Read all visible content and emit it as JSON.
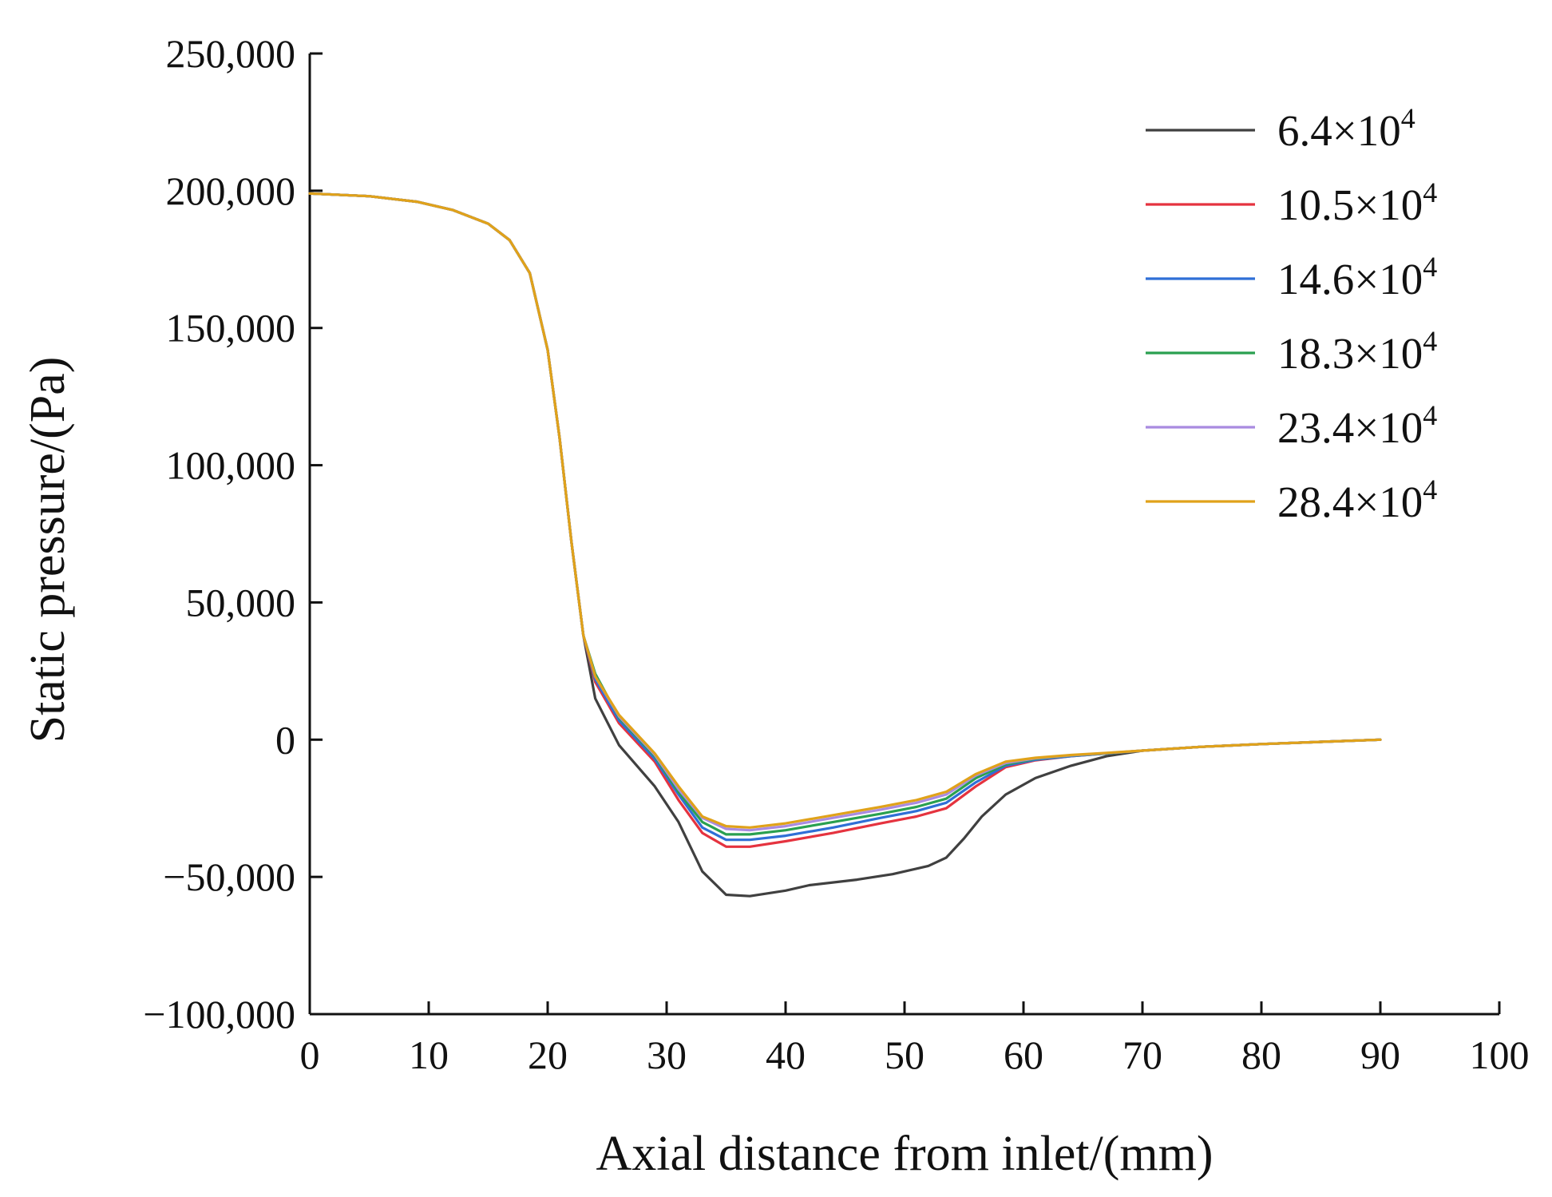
{
  "chart_data": {
    "type": "line",
    "title": "",
    "xlabel": "Axial distance from inlet/(mm)",
    "ylabel": "Static pressure/(Pa)",
    "xlim": [
      0,
      100
    ],
    "ylim": [
      -100000,
      250000
    ],
    "x_ticks": [
      0,
      10,
      20,
      30,
      40,
      50,
      60,
      70,
      80,
      90,
      100
    ],
    "x_tick_labels": [
      "0",
      "10",
      "20",
      "30",
      "40",
      "50",
      "60",
      "70",
      "80",
      "90",
      "100"
    ],
    "y_ticks": [
      -100000,
      -50000,
      0,
      50000,
      100000,
      150000,
      200000,
      250000
    ],
    "y_tick_labels": [
      "−100,000",
      "−50,000",
      "0",
      "50,000",
      "100,000",
      "150,000",
      "200,000",
      "250,000"
    ],
    "grid": false,
    "legend_position": "top-right",
    "series": [
      {
        "name": "6.4×10",
        "exponent": "4",
        "color": "#404040",
        "x": [
          0,
          5,
          9,
          12,
          15,
          16.8,
          18.5,
          20,
          21,
          22,
          23,
          24,
          26,
          29,
          31,
          33,
          35,
          37,
          40,
          42,
          46,
          49,
          52,
          53.5,
          55,
          56.5,
          58.5,
          61,
          64,
          67,
          70,
          75,
          80,
          85,
          90
        ],
        "y": [
          199000,
          198000,
          196000,
          193000,
          188000,
          182000,
          170000,
          142000,
          110000,
          72000,
          38000,
          15000,
          -2000,
          -17000,
          -30000,
          -48000,
          -56500,
          -57000,
          -55000,
          -53000,
          -51000,
          -49000,
          -46000,
          -43000,
          -36000,
          -28000,
          -20000,
          -14000,
          -9500,
          -6000,
          -4000,
          -2600,
          -1600,
          -800,
          0
        ]
      },
      {
        "name": "10.5×10",
        "exponent": "4",
        "color": "#e5333f",
        "x": [
          0,
          5,
          9,
          12,
          15,
          16.8,
          18.5,
          20,
          21,
          22,
          23,
          24,
          26,
          29,
          31,
          33,
          35,
          37,
          40,
          44,
          48,
          51,
          53.5,
          56,
          58.5,
          61,
          64,
          67,
          70,
          75,
          80,
          85,
          90
        ],
        "y": [
          199000,
          198000,
          196000,
          193000,
          188000,
          182000,
          170000,
          142000,
          110000,
          72000,
          38000,
          21000,
          6000,
          -8000,
          -22000,
          -34000,
          -39000,
          -39000,
          -37000,
          -34000,
          -30500,
          -28000,
          -25000,
          -17000,
          -10000,
          -7500,
          -6000,
          -5000,
          -4000,
          -2600,
          -1600,
          -800,
          0
        ]
      },
      {
        "name": "14.6×10",
        "exponent": "4",
        "color": "#2f6fd6",
        "x": [
          0,
          5,
          9,
          12,
          15,
          16.8,
          18.5,
          20,
          21,
          22,
          23,
          24,
          26,
          29,
          31,
          33,
          35,
          37,
          40,
          44,
          48,
          51,
          53.5,
          56,
          58.5,
          61,
          64,
          67,
          70,
          75,
          80,
          85,
          90
        ],
        "y": [
          199000,
          198000,
          196000,
          193000,
          188000,
          182000,
          170000,
          142000,
          110000,
          72000,
          38000,
          22000,
          7000,
          -7000,
          -20000,
          -32000,
          -36500,
          -36500,
          -35000,
          -32000,
          -28500,
          -26000,
          -23000,
          -15500,
          -9500,
          -7300,
          -6000,
          -5000,
          -4000,
          -2600,
          -1600,
          -800,
          0
        ]
      },
      {
        "name": "18.3×10",
        "exponent": "4",
        "color": "#2aa050",
        "x": [
          0,
          5,
          9,
          12,
          15,
          16.8,
          18.5,
          20,
          21,
          22,
          23,
          24,
          26,
          29,
          31,
          33,
          35,
          37,
          40,
          44,
          48,
          51,
          53.5,
          56,
          58.5,
          61,
          64,
          67,
          70,
          75,
          80,
          85,
          90
        ],
        "y": [
          199000,
          198000,
          196000,
          193000,
          188000,
          182000,
          170000,
          142000,
          110000,
          72000,
          38000,
          24000,
          8000,
          -6000,
          -19000,
          -30000,
          -34500,
          -34500,
          -33000,
          -30000,
          -27000,
          -24500,
          -21500,
          -14000,
          -9000,
          -7000,
          -5800,
          -5000,
          -4000,
          -2600,
          -1600,
          -800,
          0
        ]
      },
      {
        "name": "23.4×10",
        "exponent": "4",
        "color": "#a98be0",
        "x": [
          0,
          5,
          9,
          12,
          15,
          16.8,
          18.5,
          20,
          21,
          22,
          23,
          24,
          26,
          29,
          31,
          33,
          35,
          37,
          40,
          44,
          48,
          51,
          53.5,
          56,
          58.5,
          61,
          64,
          67,
          70,
          75,
          80,
          85,
          90
        ],
        "y": [
          199000,
          198000,
          196000,
          193000,
          188000,
          182000,
          170000,
          142000,
          110000,
          72000,
          38000,
          23000,
          8500,
          -5500,
          -18000,
          -28500,
          -32500,
          -33000,
          -31500,
          -28500,
          -25500,
          -23000,
          -20000,
          -13000,
          -8500,
          -6800,
          -5700,
          -4900,
          -4000,
          -2600,
          -1600,
          -800,
          0
        ]
      },
      {
        "name": "28.4×10",
        "exponent": "4",
        "color": "#e0a21a",
        "x": [
          0,
          5,
          9,
          12,
          15,
          16.8,
          18.5,
          20,
          21,
          22,
          23,
          24,
          26,
          29,
          31,
          33,
          35,
          37,
          40,
          44,
          48,
          51,
          53.5,
          56,
          58.5,
          61,
          64,
          67,
          70,
          75,
          80,
          85,
          90
        ],
        "y": [
          199000,
          198000,
          196000,
          193000,
          188000,
          182000,
          170000,
          142000,
          110000,
          72000,
          38000,
          23000,
          9000,
          -5000,
          -17000,
          -28000,
          -31500,
          -32000,
          -30500,
          -27500,
          -24500,
          -22000,
          -19000,
          -12500,
          -8000,
          -6600,
          -5600,
          -4800,
          -4000,
          -2600,
          -1600,
          -800,
          0
        ]
      }
    ]
  }
}
